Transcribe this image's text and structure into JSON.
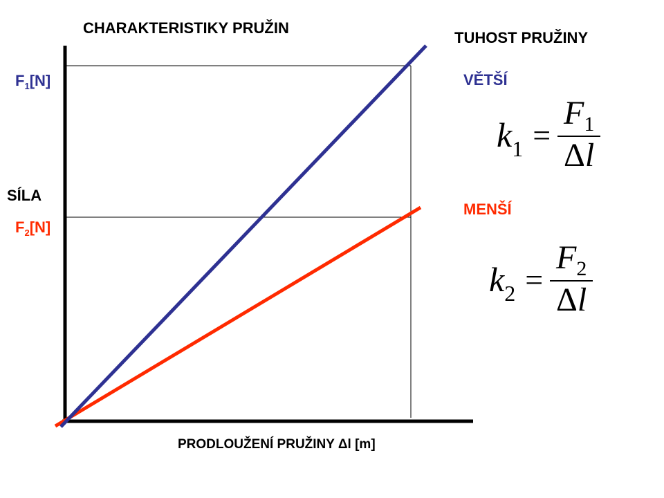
{
  "title": "CHARAKTERISTIKY PRUŽIN",
  "axes": {
    "y_label": "SÍLA",
    "x_label": "PRODLOUŽENÍ PRUŽINY  Δl [m]",
    "f1_main": "F",
    "f1_sub": "1",
    "f1_unit": "[N]",
    "f2_main": "F",
    "f2_sub": "2",
    "f2_unit": "[N]"
  },
  "stiffness": {
    "title": "TUHOST PRUŽINY",
    "bigger": "VĚTŠÍ",
    "smaller": "MENŠÍ",
    "formula_1": {
      "k": "k",
      "k_sub": "1",
      "eq": "=",
      "num": "F",
      "num_sub": "1",
      "den_delta": "Δ",
      "den_l": "l"
    },
    "formula_2": {
      "k": "k",
      "k_sub": "2",
      "eq": "=",
      "num": "F",
      "num_sub": "2",
      "den_delta": "Δ",
      "den_l": "l"
    }
  },
  "colors": {
    "spring_1": "#2e3192",
    "spring_2": "#ff2a00",
    "axis": "#000000"
  }
}
